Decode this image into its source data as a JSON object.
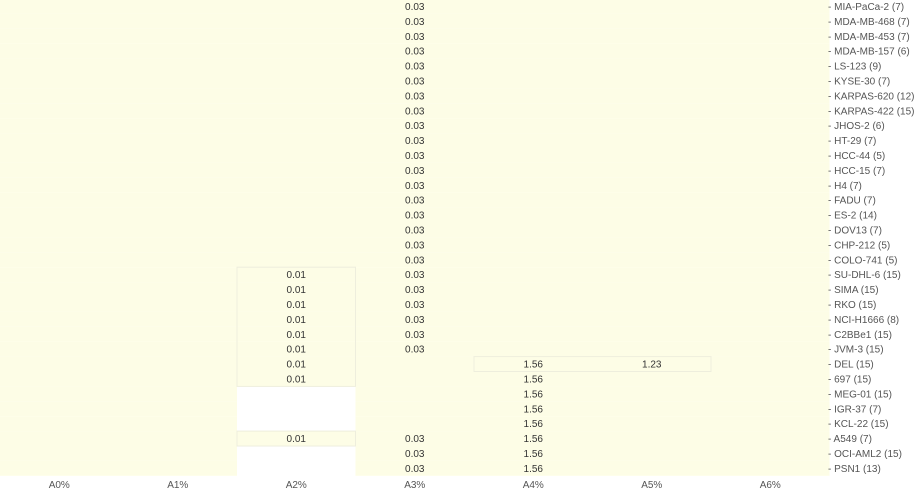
{
  "chart_data": {
    "type": "heatmap",
    "columns": [
      "A0%",
      "A1%",
      "A2%",
      "A3%",
      "A4%",
      "A5%",
      "A6%"
    ],
    "rows": [
      "MIA-PaCa-2 (7)",
      "MDA-MB-468 (7)",
      "MDA-MB-453 (7)",
      "MDA-MB-157 (6)",
      "LS-123 (9)",
      "KYSE-30 (7)",
      "KARPAS-620 (12)",
      "KARPAS-422 (15)",
      "JHOS-2 (6)",
      "HT-29 (7)",
      "HCC-44 (5)",
      "HCC-15 (7)",
      "H4 (7)",
      "FADU (7)",
      "ES-2 (14)",
      "DOV13 (7)",
      "CHP-212 (5)",
      "COLO-741 (5)",
      "SU-DHL-6 (15)",
      "SIMA (15)",
      "RKO (15)",
      "NCI-H1666 (8)",
      "C2BBe1 (15)",
      "JVM-3 (15)",
      "DEL (15)",
      "697 (15)",
      "MEG-01 (15)",
      "IGR-37 (7)",
      "KCL-22 (15)",
      "A549 (7)",
      "OCI-AML2 (15)",
      "PSN1 (13)"
    ],
    "values": [
      [
        null,
        null,
        null,
        0.03,
        null,
        null,
        null
      ],
      [
        null,
        null,
        null,
        0.03,
        null,
        null,
        null
      ],
      [
        null,
        null,
        null,
        0.03,
        null,
        null,
        null
      ],
      [
        null,
        null,
        null,
        0.03,
        null,
        null,
        null
      ],
      [
        null,
        null,
        null,
        0.03,
        null,
        null,
        null
      ],
      [
        null,
        null,
        null,
        0.03,
        null,
        null,
        null
      ],
      [
        null,
        null,
        null,
        0.03,
        null,
        null,
        null
      ],
      [
        null,
        null,
        null,
        0.03,
        null,
        null,
        null
      ],
      [
        null,
        null,
        null,
        0.03,
        null,
        null,
        null
      ],
      [
        null,
        null,
        null,
        0.03,
        null,
        null,
        null
      ],
      [
        null,
        null,
        null,
        0.03,
        null,
        null,
        null
      ],
      [
        null,
        null,
        null,
        0.03,
        null,
        null,
        null
      ],
      [
        null,
        null,
        null,
        0.03,
        null,
        null,
        null
      ],
      [
        null,
        null,
        null,
        0.03,
        null,
        null,
        null
      ],
      [
        null,
        null,
        null,
        0.03,
        null,
        null,
        null
      ],
      [
        null,
        null,
        null,
        0.03,
        null,
        null,
        null
      ],
      [
        null,
        null,
        null,
        0.03,
        null,
        null,
        null
      ],
      [
        null,
        null,
        null,
        0.03,
        null,
        null,
        null
      ],
      [
        null,
        null,
        0.01,
        0.03,
        null,
        null,
        null
      ],
      [
        null,
        null,
        0.01,
        0.03,
        null,
        null,
        null
      ],
      [
        null,
        null,
        0.01,
        0.03,
        null,
        null,
        null
      ],
      [
        null,
        null,
        0.01,
        0.03,
        null,
        null,
        null
      ],
      [
        null,
        null,
        0.01,
        0.03,
        null,
        null,
        null
      ],
      [
        null,
        null,
        0.01,
        0.03,
        null,
        null,
        null
      ],
      [
        null,
        null,
        0.01,
        null,
        1.56,
        1.23,
        null
      ],
      [
        null,
        null,
        0.01,
        null,
        1.56,
        null,
        null
      ],
      [
        null,
        null,
        null,
        null,
        1.56,
        null,
        null
      ],
      [
        null,
        null,
        null,
        null,
        1.56,
        null,
        null
      ],
      [
        null,
        null,
        null,
        null,
        1.56,
        null,
        null
      ],
      [
        null,
        null,
        0.01,
        0.03,
        1.56,
        null,
        null
      ],
      [
        null,
        null,
        null,
        0.03,
        1.56,
        null,
        null
      ],
      [
        null,
        null,
        null,
        0.03,
        1.56,
        null,
        null
      ]
    ],
    "colors": {
      "cell_fill": "#fdfde6",
      "cell_border": "#eeeedd",
      "text": "#333333",
      "label": "#555555"
    }
  }
}
